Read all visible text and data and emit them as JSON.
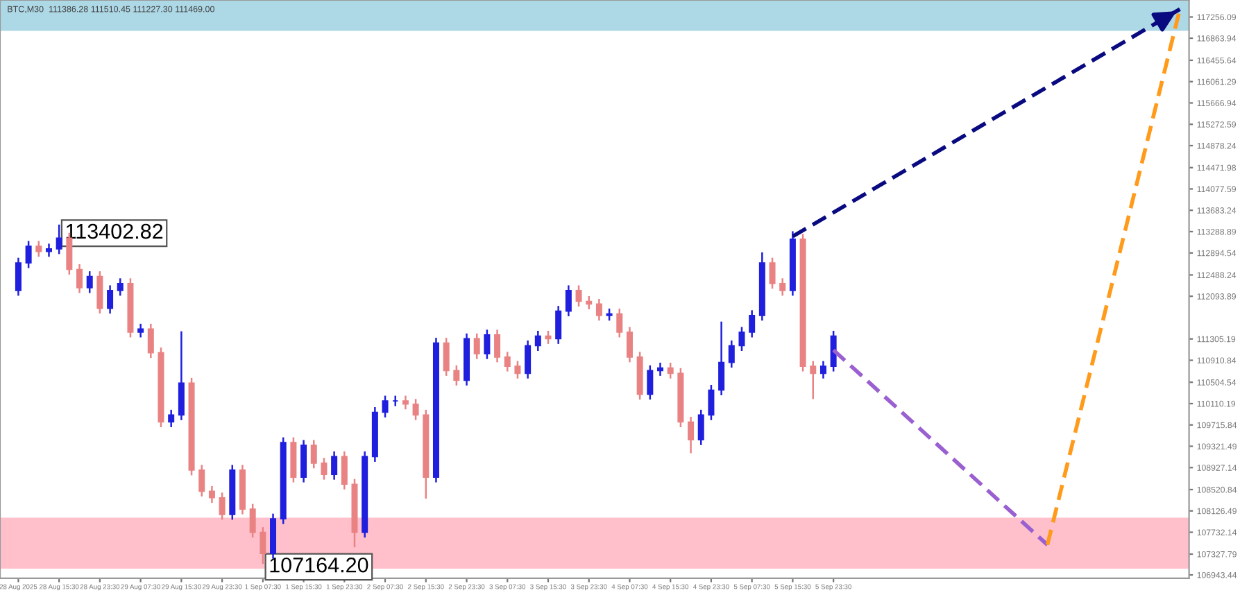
{
  "chart_data": {
    "type": "candlestick",
    "categories": [
      "28 Aug 2025",
      null,
      null,
      null,
      "28 Aug 15:30",
      null,
      null,
      null,
      "28 Aug 23:30",
      null,
      null,
      null,
      "29 Aug 07:30",
      null,
      null,
      null,
      "29 Aug 15:30",
      null,
      null,
      null,
      "29 Aug 23:30",
      null,
      null,
      null,
      "1 Sep 07:30",
      null,
      null,
      null,
      "1 Sep 15:30",
      null,
      null,
      null,
      "1 Sep 23:30",
      null,
      null,
      null,
      "2 Sep 07:30",
      null,
      null,
      null,
      "2 Sep 15:30",
      null,
      null,
      null,
      "2 Sep 23:30",
      null,
      null,
      null,
      "3 Sep 07:30",
      null,
      null,
      null,
      "3 Sep 15:30",
      null,
      null,
      null,
      "3 Sep 23:30",
      null,
      null,
      null,
      "4 Sep 07:30",
      null,
      null,
      null,
      "4 Sep 15:30",
      null,
      null,
      null,
      "4 Sep 23:30",
      null,
      null,
      null,
      "5 Sep 07:30",
      null,
      null,
      null,
      "5 Sep 15:30",
      null,
      null,
      null,
      "5 Sep 23:30",
      null,
      null,
      null,
      null,
      null,
      null,
      null,
      null,
      null,
      null,
      null,
      null,
      null,
      null,
      null,
      null,
      null,
      null,
      null,
      null,
      null,
      null,
      null,
      null,
      null,
      null,
      null,
      null,
      null,
      null,
      null,
      null,
      null,
      null
    ],
    "ohlc": [
      [
        112200,
        112790,
        112120,
        112710
      ],
      [
        112710,
        113100,
        112630,
        113020
      ],
      [
        113020,
        113100,
        112840,
        112920
      ],
      [
        112920,
        113050,
        112840,
        112970
      ],
      [
        112970,
        113402.82,
        112890,
        113170
      ],
      [
        113170,
        113250,
        112510,
        112590
      ],
      [
        112590,
        112670,
        112170,
        112250
      ],
      [
        112250,
        112540,
        112170,
        112460
      ],
      [
        112460,
        112540,
        111790,
        111870
      ],
      [
        111870,
        112280,
        111790,
        112200
      ],
      [
        112200,
        112410,
        112120,
        112330
      ],
      [
        112330,
        112410,
        111350,
        111430
      ],
      [
        111430,
        111570,
        111350,
        111490
      ],
      [
        111490,
        111570,
        110970,
        111050
      ],
      [
        111050,
        111130,
        109690,
        109770
      ],
      [
        109770,
        109980,
        109690,
        109900
      ],
      [
        109900,
        111430,
        109820,
        110490
      ],
      [
        110490,
        110570,
        108800,
        108880
      ],
      [
        108880,
        108960,
        108410,
        108490
      ],
      [
        108490,
        108570,
        108290,
        108370
      ],
      [
        108370,
        108450,
        107980,
        108060
      ],
      [
        108060,
        108960,
        107980,
        108880
      ],
      [
        108880,
        108960,
        108080,
        108160
      ],
      [
        108160,
        108240,
        107650,
        107730
      ],
      [
        107730,
        107810,
        107164.2,
        107340
      ],
      [
        107340,
        108060,
        107260,
        107980
      ],
      [
        107980,
        109470,
        107900,
        109390
      ],
      [
        109390,
        109470,
        108670,
        108750
      ],
      [
        108750,
        109420,
        108670,
        109340
      ],
      [
        109340,
        109420,
        108930,
        109010
      ],
      [
        109010,
        109090,
        108720,
        108800
      ],
      [
        108800,
        109210,
        108720,
        109130
      ],
      [
        109130,
        109210,
        108540,
        108620
      ],
      [
        108620,
        108700,
        107470,
        107730
      ],
      [
        107730,
        109210,
        107650,
        109130
      ],
      [
        109130,
        110030,
        109050,
        109950
      ],
      [
        109950,
        110240,
        109870,
        110160
      ],
      [
        110160,
        110240,
        110080,
        110160
      ],
      [
        110160,
        110240,
        110020,
        110100
      ],
      [
        110100,
        110180,
        109820,
        109900
      ],
      [
        109900,
        109980,
        108370,
        108750
      ],
      [
        108750,
        111310,
        108670,
        111230
      ],
      [
        111230,
        111310,
        110640,
        110720
      ],
      [
        110720,
        110800,
        110460,
        110540
      ],
      [
        110540,
        111390,
        110460,
        111310
      ],
      [
        111310,
        111390,
        110950,
        111030
      ],
      [
        111030,
        111460,
        110950,
        111380
      ],
      [
        111380,
        111460,
        110890,
        110970
      ],
      [
        110970,
        111050,
        110720,
        110800
      ],
      [
        110800,
        110880,
        110590,
        110670
      ],
      [
        110670,
        111260,
        110590,
        111180
      ],
      [
        111180,
        111440,
        111100,
        111360
      ],
      [
        111360,
        111440,
        111230,
        111310
      ],
      [
        111310,
        111900,
        111230,
        111820
      ],
      [
        111820,
        112280,
        111740,
        112200
      ],
      [
        112200,
        112280,
        111920,
        112000
      ],
      [
        112000,
        112080,
        111870,
        111950
      ],
      [
        111950,
        112030,
        111660,
        111740
      ],
      [
        111740,
        111850,
        111660,
        111770
      ],
      [
        111770,
        111850,
        111350,
        111430
      ],
      [
        111430,
        111510,
        110890,
        110970
      ],
      [
        110970,
        111050,
        110200,
        110280
      ],
      [
        110280,
        110800,
        110200,
        110720
      ],
      [
        110720,
        110850,
        110640,
        110770
      ],
      [
        110770,
        110850,
        110590,
        110670
      ],
      [
        110670,
        110750,
        109690,
        109770
      ],
      [
        109770,
        109850,
        109210,
        109440
      ],
      [
        109440,
        109980,
        109360,
        109900
      ],
      [
        109900,
        110440,
        109820,
        110360
      ],
      [
        110360,
        111610,
        110280,
        110870
      ],
      [
        110870,
        111260,
        110790,
        111180
      ],
      [
        111180,
        111510,
        111100,
        111430
      ],
      [
        111430,
        111820,
        111350,
        111740
      ],
      [
        111740,
        112890,
        111660,
        112710
      ],
      [
        112710,
        112790,
        112250,
        112330
      ],
      [
        112330,
        112410,
        112120,
        112200
      ],
      [
        112200,
        113280,
        112120,
        113150
      ],
      [
        113150,
        113230,
        110720,
        110800
      ],
      [
        110800,
        110880,
        110210,
        110670
      ],
      [
        110670,
        110880,
        110590,
        110800
      ],
      [
        110800,
        111440,
        110720,
        111360
      ],
      null,
      null,
      null,
      null,
      null,
      null,
      null,
      null,
      null,
      null,
      null,
      null,
      null,
      null,
      null,
      null,
      null,
      null,
      null,
      null,
      null,
      null,
      null,
      null,
      null,
      null,
      null,
      null,
      null,
      null,
      null,
      null,
      null,
      null
    ],
    "colors": [
      "#1f1fdd",
      "#1f1fdd",
      "#e98383",
      "#1f1fdd",
      "#1f1fdd",
      "#e98383",
      "#e98383",
      "#1f1fdd",
      "#e98383",
      "#1f1fdd",
      "#1f1fdd",
      "#e98383",
      "#1f1fdd",
      "#e98383",
      "#e98383",
      "#1f1fdd",
      "#1f1fdd",
      "#e98383",
      "#e98383",
      "#e98383",
      "#e98383",
      "#1f1fdd",
      "#e98383",
      "#e98383",
      "#e98383",
      "#1f1fdd",
      "#1f1fdd",
      "#e98383",
      "#1f1fdd",
      "#e98383",
      "#e98383",
      "#1f1fdd",
      "#e98383",
      "#e98383",
      "#1f1fdd",
      "#1f1fdd",
      "#1f1fdd",
      "#1f1fdd",
      "#e98383",
      "#e98383",
      "#e98383",
      "#1f1fdd",
      "#e98383",
      "#e98383",
      "#1f1fdd",
      "#e98383",
      "#1f1fdd",
      "#e98383",
      "#e98383",
      "#e98383",
      "#1f1fdd",
      "#1f1fdd",
      "#e98383",
      "#1f1fdd",
      "#1f1fdd",
      "#e98383",
      "#e98383",
      "#e98383",
      "#1f1fdd",
      "#e98383",
      "#e98383",
      "#e98383",
      "#1f1fdd",
      "#1f1fdd",
      "#e98383",
      "#e98383",
      "#e98383",
      "#1f1fdd",
      "#1f1fdd",
      "#1f1fdd",
      "#1f1fdd",
      "#1f1fdd",
      "#1f1fdd",
      "#1f1fdd",
      "#e98383",
      "#e98383",
      "#1f1fdd",
      "#e98383",
      "#e98383",
      "#1f1fdd",
      "#1f1fdd",
      null,
      null,
      null,
      null,
      null,
      null,
      null,
      null,
      null,
      null,
      null,
      null,
      null,
      null,
      null,
      null,
      null,
      null,
      null,
      null,
      null,
      null,
      null,
      null,
      null,
      null,
      null,
      null,
      null,
      null,
      null,
      null,
      null,
      null
    ],
    "series": [
      {
        "type": "line",
        "values": [
          null,
          null,
          null,
          null,
          null,
          null,
          null,
          null,
          null,
          null,
          null,
          null,
          null,
          null,
          null,
          null,
          null,
          null,
          null,
          null,
          null,
          null,
          null,
          null,
          null,
          null,
          null,
          null,
          null,
          null,
          null,
          null,
          null,
          null,
          null,
          null,
          null,
          null,
          null,
          null,
          null,
          null,
          null,
          null,
          null,
          null,
          null,
          null,
          null,
          null,
          null,
          null,
          null,
          null,
          null,
          null,
          null,
          null,
          null,
          null,
          null,
          null,
          null,
          null,
          null,
          null,
          null,
          null,
          null,
          null,
          null,
          null,
          null,
          null,
          null,
          null,
          null,
          null,
          null,
          null,
          111100,
          null,
          null,
          null,
          null,
          null,
          null,
          null,
          null,
          null,
          null,
          null,
          null,
          null,
          null,
          null,
          null,
          null,
          null,
          null,
          null,
          107500,
          null,
          null,
          null,
          null,
          null,
          null,
          null,
          null,
          null,
          null,
          null,
          null,
          null
        ],
        "color": "#9a5fd0",
        "line_style": "dashed"
      },
      {
        "type": "line",
        "values": [
          null,
          null,
          null,
          null,
          null,
          null,
          null,
          null,
          null,
          null,
          null,
          null,
          null,
          null,
          null,
          null,
          null,
          null,
          null,
          null,
          null,
          null,
          null,
          null,
          null,
          null,
          null,
          null,
          null,
          null,
          null,
          null,
          null,
          null,
          null,
          null,
          null,
          null,
          null,
          null,
          null,
          null,
          null,
          null,
          null,
          null,
          null,
          null,
          null,
          null,
          null,
          null,
          null,
          null,
          null,
          null,
          null,
          null,
          null,
          null,
          null,
          null,
          null,
          null,
          null,
          null,
          null,
          null,
          null,
          null,
          null,
          null,
          null,
          null,
          null,
          null,
          null,
          null,
          null,
          null,
          null,
          null,
          null,
          null,
          null,
          null,
          null,
          null,
          null,
          null,
          null,
          null,
          null,
          null,
          null,
          null,
          null,
          null,
          null,
          null,
          null,
          107500,
          null,
          null,
          null,
          null,
          null,
          null,
          null,
          null,
          null,
          null,
          null,
          null,
          117400
        ],
        "color": "#ff9a1a",
        "line_style": "dashed"
      },
      {
        "type": "line",
        "values": [
          null,
          null,
          null,
          null,
          null,
          null,
          null,
          null,
          null,
          null,
          null,
          null,
          null,
          null,
          null,
          null,
          null,
          null,
          null,
          null,
          null,
          null,
          null,
          null,
          null,
          null,
          null,
          null,
          null,
          null,
          null,
          null,
          null,
          null,
          null,
          null,
          null,
          null,
          null,
          null,
          null,
          null,
          null,
          null,
          null,
          null,
          null,
          null,
          null,
          null,
          null,
          null,
          null,
          null,
          null,
          null,
          null,
          null,
          null,
          null,
          null,
          null,
          null,
          null,
          null,
          null,
          null,
          null,
          null,
          null,
          null,
          null,
          null,
          null,
          null,
          null,
          113200,
          null,
          null,
          null,
          null,
          null,
          null,
          null,
          null,
          null,
          null,
          null,
          null,
          null,
          null,
          null,
          null,
          null,
          null,
          null,
          null,
          null,
          null,
          null,
          null,
          null,
          null,
          null,
          null,
          null,
          null,
          null,
          null,
          null,
          null,
          null,
          null,
          null,
          117400
        ],
        "color": "#0a0a80",
        "line_style": "dashed"
      }
    ],
    "bands": [
      {
        "axis": "y",
        "from": 117000,
        "to": 117570,
        "color": "#add8e6"
      },
      {
        "axis": "y",
        "from": 107060,
        "to": 108000,
        "color": "#ffc0cb"
      }
    ],
    "annotations": [
      "BTC,M30  111386.28 111510.45 111227.30 111469.00",
      "113402.82",
      "107164.20"
    ],
    "ylim": [
      106880,
      117570
    ],
    "yticks": [
      {
        "value": 117256.09,
        "label": "117256.09"
      },
      {
        "value": 116863.94,
        "label": "116863.94"
      },
      {
        "value": 116455.64,
        "label": "116455.64"
      },
      {
        "value": 116061.29,
        "label": "116061.29"
      },
      {
        "value": 115666.94,
        "label": "115666.94"
      },
      {
        "value": 115272.59,
        "label": "115272.59"
      },
      {
        "value": 114878.24,
        "label": "114878.24"
      },
      {
        "value": 114471.98,
        "label": "114471.98"
      },
      {
        "value": 114077.59,
        "label": "114077.59"
      },
      {
        "value": 113683.24,
        "label": "113683.24"
      },
      {
        "value": 113288.89,
        "label": "113288.89"
      },
      {
        "value": 112894.54,
        "label": "112894.54"
      },
      {
        "value": 112488.24,
        "label": "112488.24"
      },
      {
        "value": 112093.89,
        "label": "112093.89"
      },
      {
        "value": 111305.19,
        "label": "111305.19"
      },
      {
        "value": 110910.84,
        "label": "110910.84"
      },
      {
        "value": 110504.54,
        "label": "110504.54"
      },
      {
        "value": 110110.19,
        "label": "110110.19"
      },
      {
        "value": 109715.84,
        "label": "109715.84"
      },
      {
        "value": 109321.49,
        "label": "109321.49"
      },
      {
        "value": 108927.14,
        "label": "108927.14"
      },
      {
        "value": 108520.84,
        "label": "108520.84"
      },
      {
        "value": 108126.49,
        "label": "108126.49"
      },
      {
        "value": 107732.14,
        "label": "107732.14"
      },
      {
        "value": 107327.79,
        "label": "107327.79"
      },
      {
        "value": 106943.44,
        "label": "106943.44"
      }
    ]
  }
}
